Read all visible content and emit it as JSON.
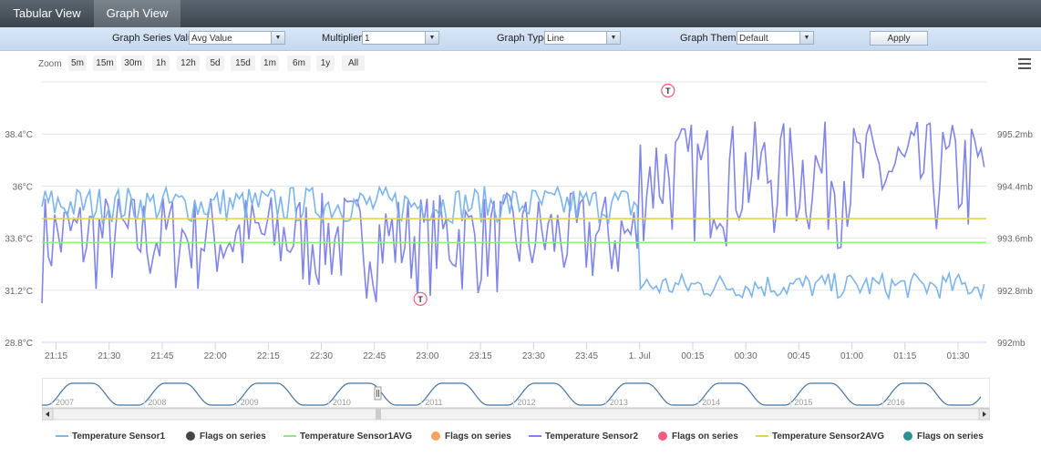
{
  "tabs": [
    "Tabular View",
    "Graph View"
  ],
  "toolbar": {
    "series_label": "Graph Series Value",
    "series_value": "Avg Value",
    "multiplier_label": "Multiplier",
    "multiplier_value": "1",
    "type_label": "Graph Type",
    "type_value": "Line",
    "theme_label": "Graph Theme",
    "theme_value": "Default",
    "apply_label": "Apply"
  },
  "zoom": {
    "label": "Zoom",
    "buttons": [
      "5m",
      "15m",
      "30m",
      "1h",
      "12h",
      "5d",
      "15d",
      "1m",
      "6m",
      "1y",
      "All"
    ]
  },
  "icons": {
    "menu": "hamburger-menu-icon",
    "scroll_left": "arrow-left-icon",
    "scroll_right": "arrow-right-icon",
    "handle": "scroll-handle-icon"
  },
  "colors": {
    "sensor1": "#7cb5ec",
    "sensor1avg": "#90ed7d",
    "sensor2": "#8085e9",
    "sensor2avg": "#e4d354",
    "flags1": "#434348",
    "flags2": "#f7a35c",
    "flags3": "#f15c80",
    "flags4": "#2b908f"
  },
  "chart_data": {
    "type": "line",
    "title": "",
    "x_tick_labels": [
      "21:15",
      "21:30",
      "21:45",
      "22:00",
      "22:15",
      "22:30",
      "22:45",
      "23:00",
      "23:15",
      "23:30",
      "23:45",
      "1. Jul",
      "00:15",
      "00:30",
      "00:45",
      "01:00",
      "01:15",
      "01:30"
    ],
    "x_range": [
      "21:11",
      "01:38"
    ],
    "y_left": {
      "unit": "°C",
      "ticks": [
        "28.8°C",
        "31.2°C",
        "33.6°C",
        "36°C",
        "38.4°C"
      ],
      "range": [
        28.8,
        40.8
      ]
    },
    "y_right": {
      "unit": "mb",
      "ticks": [
        "992mb",
        "992.8mb",
        "993.6mb",
        "994.4mb",
        "995.2mb"
      ],
      "range": [
        992,
        996
      ]
    },
    "grid": true,
    "legend_position": "bottom",
    "series": [
      {
        "name": "Temperature Sensor1",
        "axis": "left",
        "approx": {
          "before_00:00": [
            34.3,
            36.0
          ],
          "after_00:00": [
            30.8,
            32.0
          ]
        }
      },
      {
        "name": "Temperature Sensor1AVG",
        "axis": "left",
        "value": 33.4
      },
      {
        "name": "Temperature Sensor2",
        "axis": "right",
        "approx": {
          "before_00:00": [
            992.6,
            994.3
          ],
          "after_00:00": [
            993.4,
            995.4
          ]
        }
      },
      {
        "name": "Temperature Sensor2AVG",
        "axis": "right",
        "value": 993.9
      }
    ],
    "flags": [
      {
        "time": "22:58",
        "text": "T",
        "value": 30.8
      },
      {
        "time": "00:08",
        "text": "T",
        "value": 40.4
      }
    ],
    "legend": [
      "Temperature Sensor1",
      "Flags on series",
      "Temperature Sensor1AVG",
      "Flags on series",
      "Temperature Sensor2",
      "Flags on series",
      "Temperature Sensor2AVG",
      "Flags on series"
    ],
    "navigator": {
      "year_labels": [
        "2007",
        "2008",
        "2009",
        "2010",
        "2011",
        "2012",
        "2013",
        "2014",
        "2015",
        "2016"
      ]
    }
  }
}
